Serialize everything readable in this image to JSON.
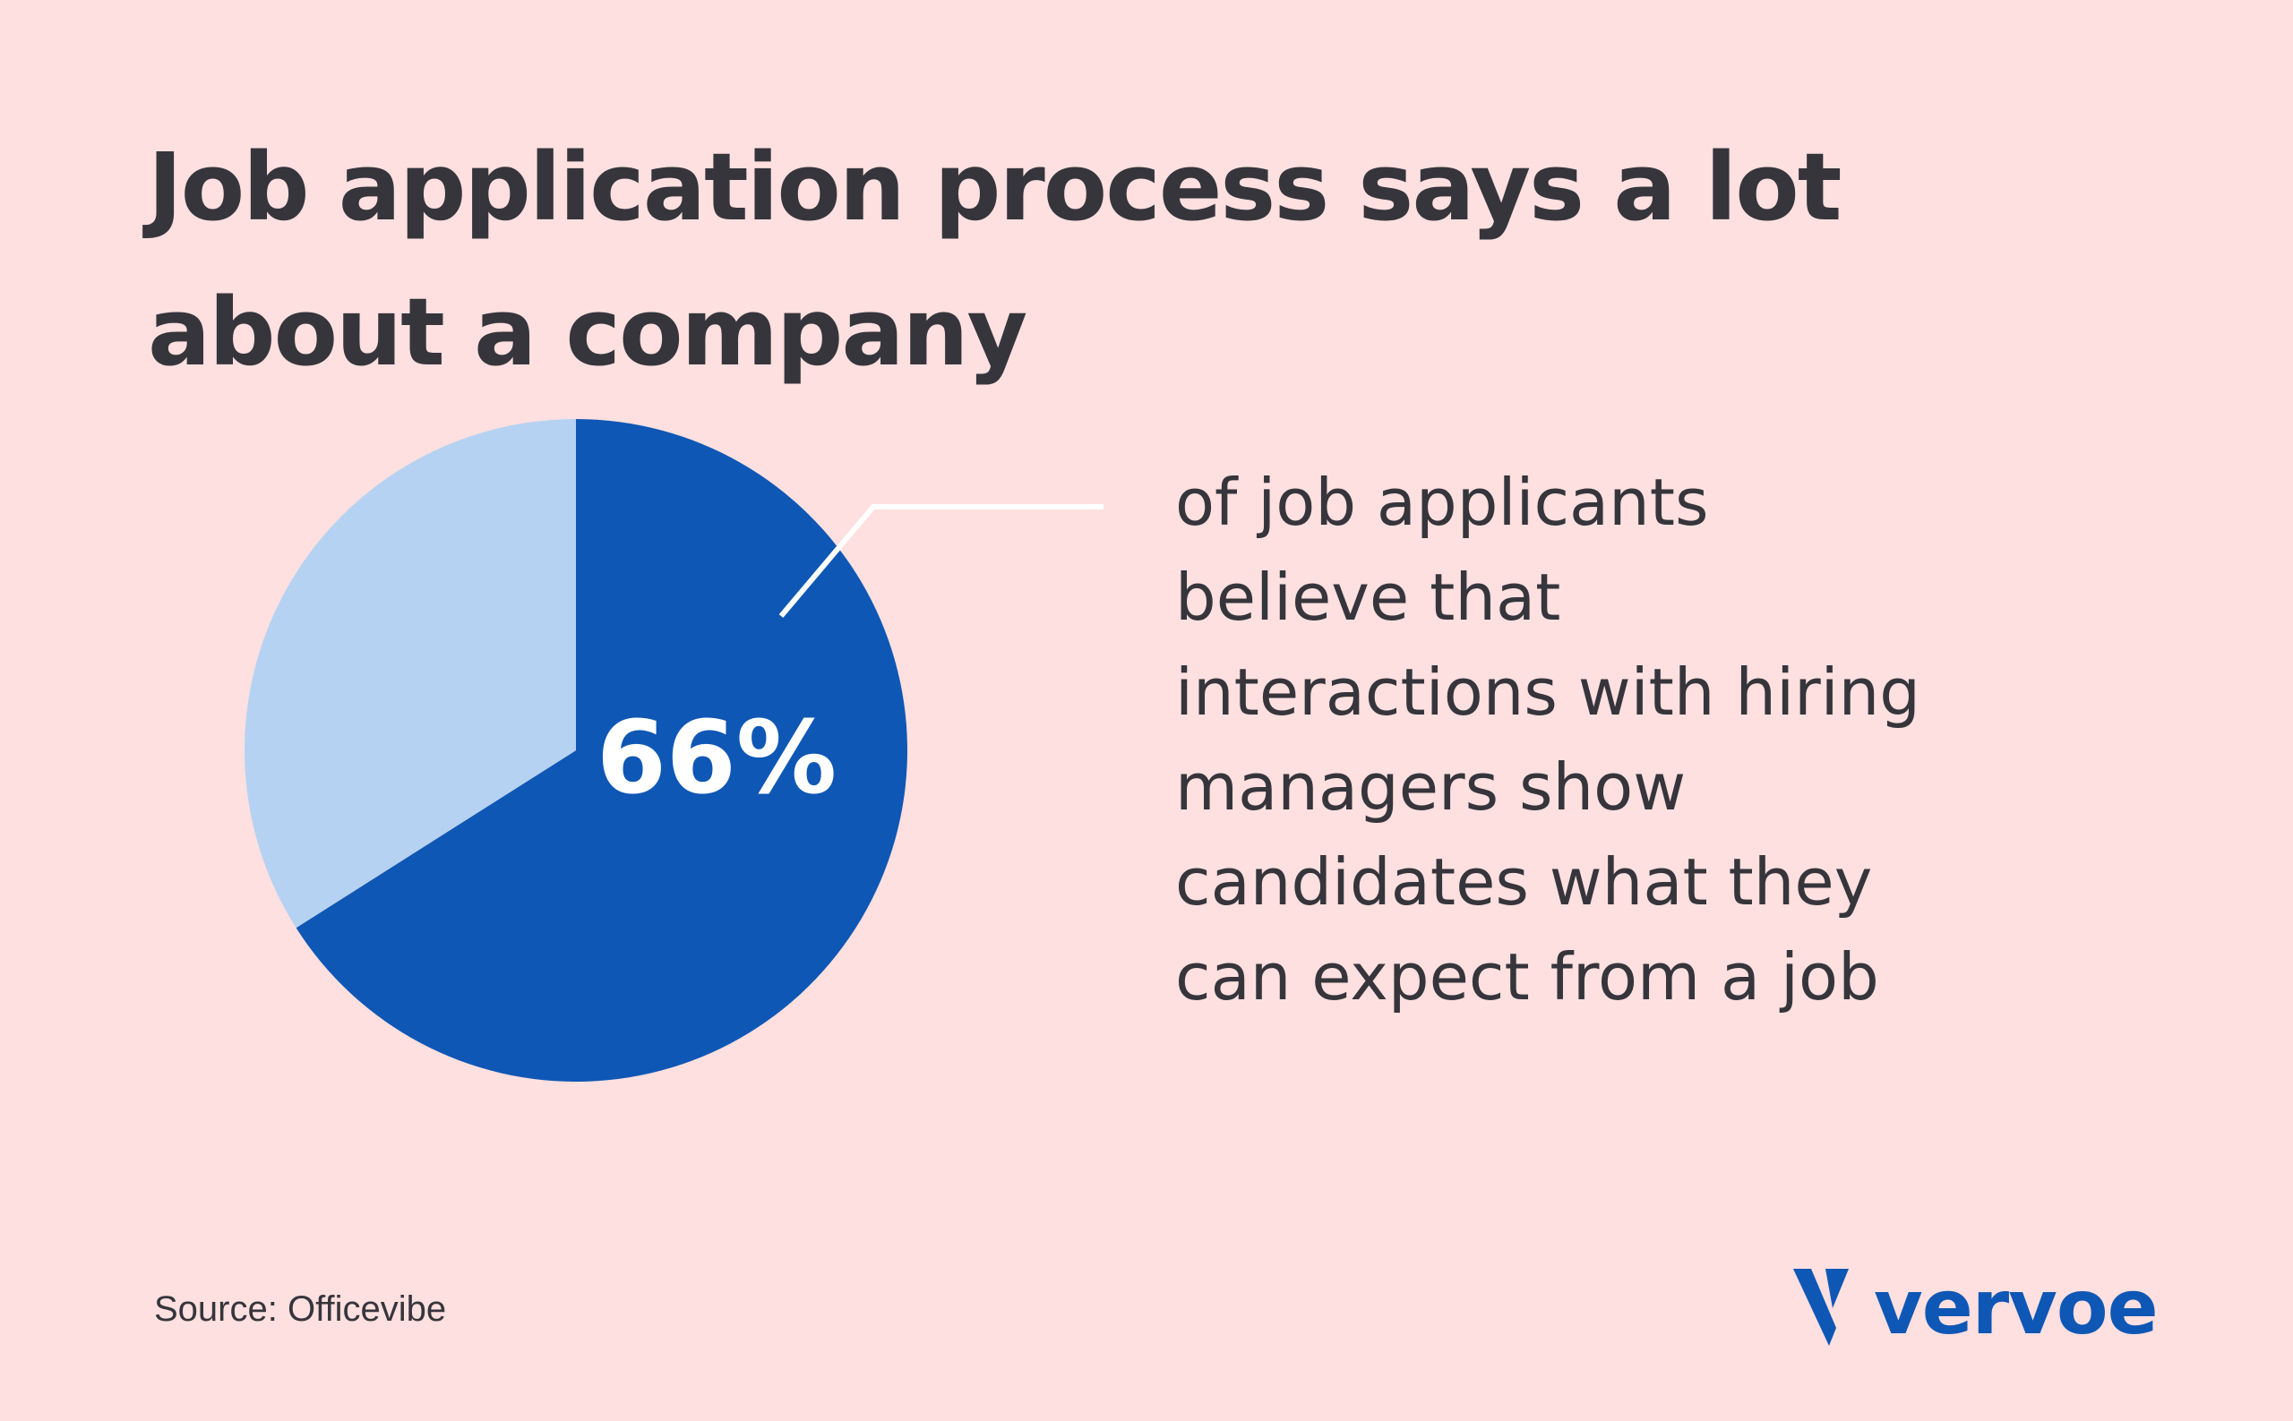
{
  "title_lines": [
    "Job application process says a lot",
    "about a company"
  ],
  "description_lines": [
    "of job applicants",
    "believe that",
    "interactions with hiring",
    "managers show",
    "candidates what they",
    "can expect from a job"
  ],
  "source": "Source: Officevibe",
  "logo": {
    "text": "vervoe",
    "icon": "vervoe-v-logo-icon"
  },
  "colors": {
    "background": "#fde0df",
    "text": "#36353c",
    "slice_main": "#0f57b5",
    "slice_rest": "#b6d2f2",
    "leader": "#ffffff"
  },
  "chart_data": {
    "type": "pie",
    "values": [
      66,
      34
    ],
    "labels": [
      "66%",
      ""
    ],
    "highlight": 0
  }
}
